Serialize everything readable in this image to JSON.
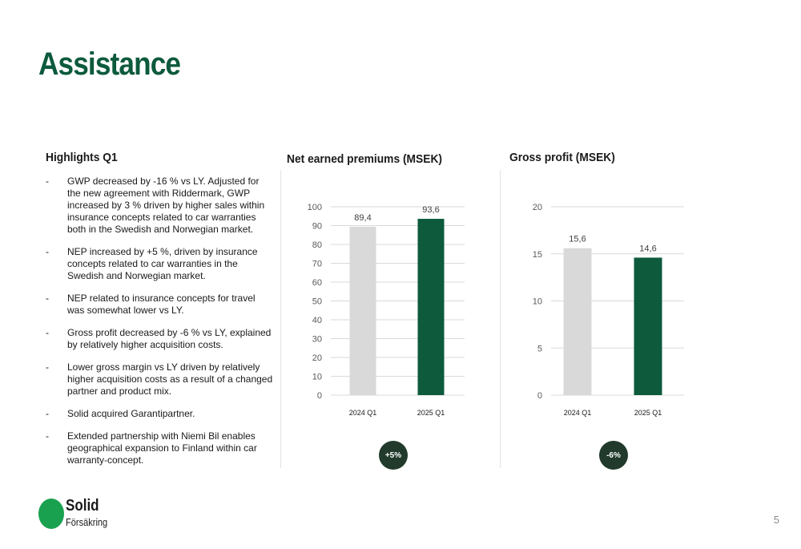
{
  "title": "Assistance",
  "highlights": {
    "heading": "Highlights Q1",
    "items": [
      "GWP decreased by -16 % vs LY. Adjusted for the new agreement with Riddermark, GWP increased by 3 % driven by higher sales within insurance concepts related to car warranties both in the Swedish and Norwegian market.",
      "NEP increased by +5 %, driven by insurance concepts related to car warranties in the Swedish and Norwegian market.",
      "NEP related to insurance concepts for travel was somewhat lower vs LY.",
      "Gross profit decreased by -6 % vs LY, explained by relatively higher acquisition costs.",
      "Lower gross margin vs LY driven by relatively higher acquisition costs as a result of a changed partner and product mix.",
      "Solid acquired Garantipartner.",
      "Extended partnership with Niemi Bil enables geographical expansion to Finland within car warranty-concept."
    ]
  },
  "chart_data": [
    {
      "type": "bar",
      "title": "Net earned premiums (MSEK)",
      "categories": [
        "2024 Q1",
        "2025 Q1"
      ],
      "values": [
        89.4,
        93.6
      ],
      "value_labels": [
        "89,4",
        "93,6"
      ],
      "ylim": [
        0,
        100
      ],
      "yticks": [
        0,
        10,
        20,
        30,
        40,
        50,
        60,
        70,
        80,
        90,
        100
      ],
      "grid": true,
      "colors": [
        "#d9d9d9",
        "#0d5a3c"
      ],
      "change": "+5%"
    },
    {
      "type": "bar",
      "title": "Gross profit (MSEK)",
      "categories": [
        "2024 Q1",
        "2025 Q1"
      ],
      "values": [
        15.6,
        14.6
      ],
      "value_labels": [
        "15,6",
        "14,6"
      ],
      "ylim": [
        0,
        20
      ],
      "yticks": [
        0,
        5,
        10,
        15,
        20
      ],
      "grid": true,
      "colors": [
        "#d9d9d9",
        "#0d5a3c"
      ],
      "change": "-6%"
    }
  ],
  "logo": {
    "name": "Solid",
    "sub": "Försäkring"
  },
  "page_number": "5"
}
